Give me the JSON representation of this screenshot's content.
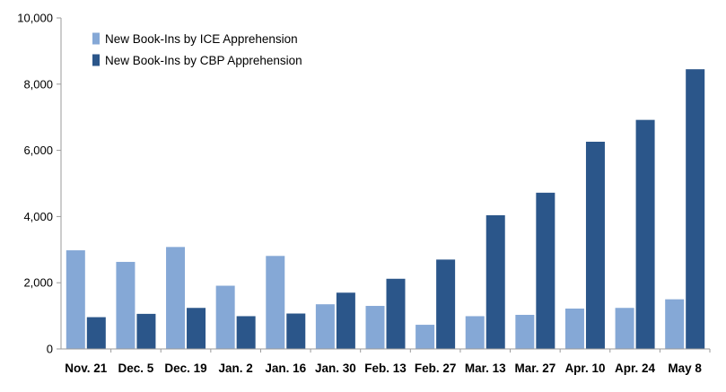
{
  "colors": {
    "ice": "#85a8d6",
    "cbp": "#2b568a",
    "axis": "#9a9a9a"
  },
  "chart_data": {
    "type": "bar",
    "title": "",
    "xlabel": "",
    "ylabel": "",
    "ylim": [
      0,
      10000
    ],
    "yticks": [
      0,
      2000,
      4000,
      6000,
      8000,
      10000
    ],
    "ytick_labels": [
      "0",
      "2,000",
      "4,000",
      "6,000",
      "8,000",
      "10,000"
    ],
    "grid": false,
    "legend_position": "top-left",
    "categories": [
      "Nov. 21",
      "Dec. 5",
      "Dec. 19",
      "Jan. 2",
      "Jan. 16",
      "Jan. 30",
      "Feb. 13",
      "Feb. 27",
      "Mar. 13",
      "Mar. 27",
      "Apr. 10",
      "Apr. 24",
      "May 8"
    ],
    "series": [
      {
        "name": "New Book-Ins by ICE Apprehension",
        "color": "#85a8d6",
        "values": [
          2980,
          2630,
          3080,
          1910,
          2810,
          1350,
          1300,
          730,
          990,
          1030,
          1220,
          1240,
          1500
        ]
      },
      {
        "name": "New Book-Ins by CBP Apprehension",
        "color": "#2b568a",
        "values": [
          960,
          1060,
          1240,
          990,
          1070,
          1700,
          2120,
          2700,
          4040,
          4720,
          6260,
          6920,
          8450
        ]
      }
    ]
  }
}
